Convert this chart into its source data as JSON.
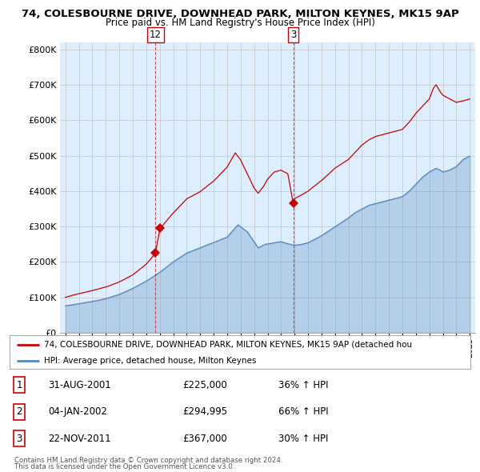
{
  "title1": "74, COLESBOURNE DRIVE, DOWNHEAD PARK, MILTON KEYNES, MK15 9AP",
  "title2": "Price paid vs. HM Land Registry's House Price Index (HPI)",
  "legend_red": "74, COLESBOURNE DRIVE, DOWNHEAD PARK, MILTON KEYNES, MK15 9AP (detached hou",
  "legend_blue": "HPI: Average price, detached house, Milton Keynes",
  "transactions": [
    {
      "num": "1",
      "date": "31-AUG-2001",
      "price": "£225,000",
      "hpi": "36% ↑ HPI"
    },
    {
      "num": "2",
      "date": "04-JAN-2002",
      "price": "£294,995",
      "hpi": "66% ↑ HPI"
    },
    {
      "num": "3",
      "date": "22-NOV-2011",
      "price": "£367,000",
      "hpi": "30% ↑ HPI"
    }
  ],
  "footer1": "Contains HM Land Registry data © Crown copyright and database right 2024.",
  "footer2": "This data is licensed under the Open Government Licence v3.0.",
  "ylim": [
    0,
    820000
  ],
  "yticks": [
    0,
    100000,
    200000,
    300000,
    400000,
    500000,
    600000,
    700000,
    800000
  ],
  "ytick_labels": [
    "£0",
    "£100K",
    "£200K",
    "£300K",
    "£400K",
    "£500K",
    "£600K",
    "£700K",
    "£800K"
  ],
  "red_color": "#cc0000",
  "blue_color": "#5588bb",
  "blue_fill": "#ddeeff",
  "vline_color": "#cc3333",
  "bg_color": "#ffffff",
  "grid_color": "#cccccc",
  "transaction_dots": [
    {
      "year": 2001.67,
      "value": 225000
    },
    {
      "year": 2002.01,
      "value": 294995
    },
    {
      "year": 2011.9,
      "value": 367000
    }
  ],
  "label_boxes": [
    {
      "year": 2001.67,
      "label": "12"
    },
    {
      "year": 2011.9,
      "label": "3"
    }
  ],
  "vline_dates": [
    2001.67,
    2011.9
  ],
  "xlim_start": 1994.6,
  "xlim_end": 2025.4
}
